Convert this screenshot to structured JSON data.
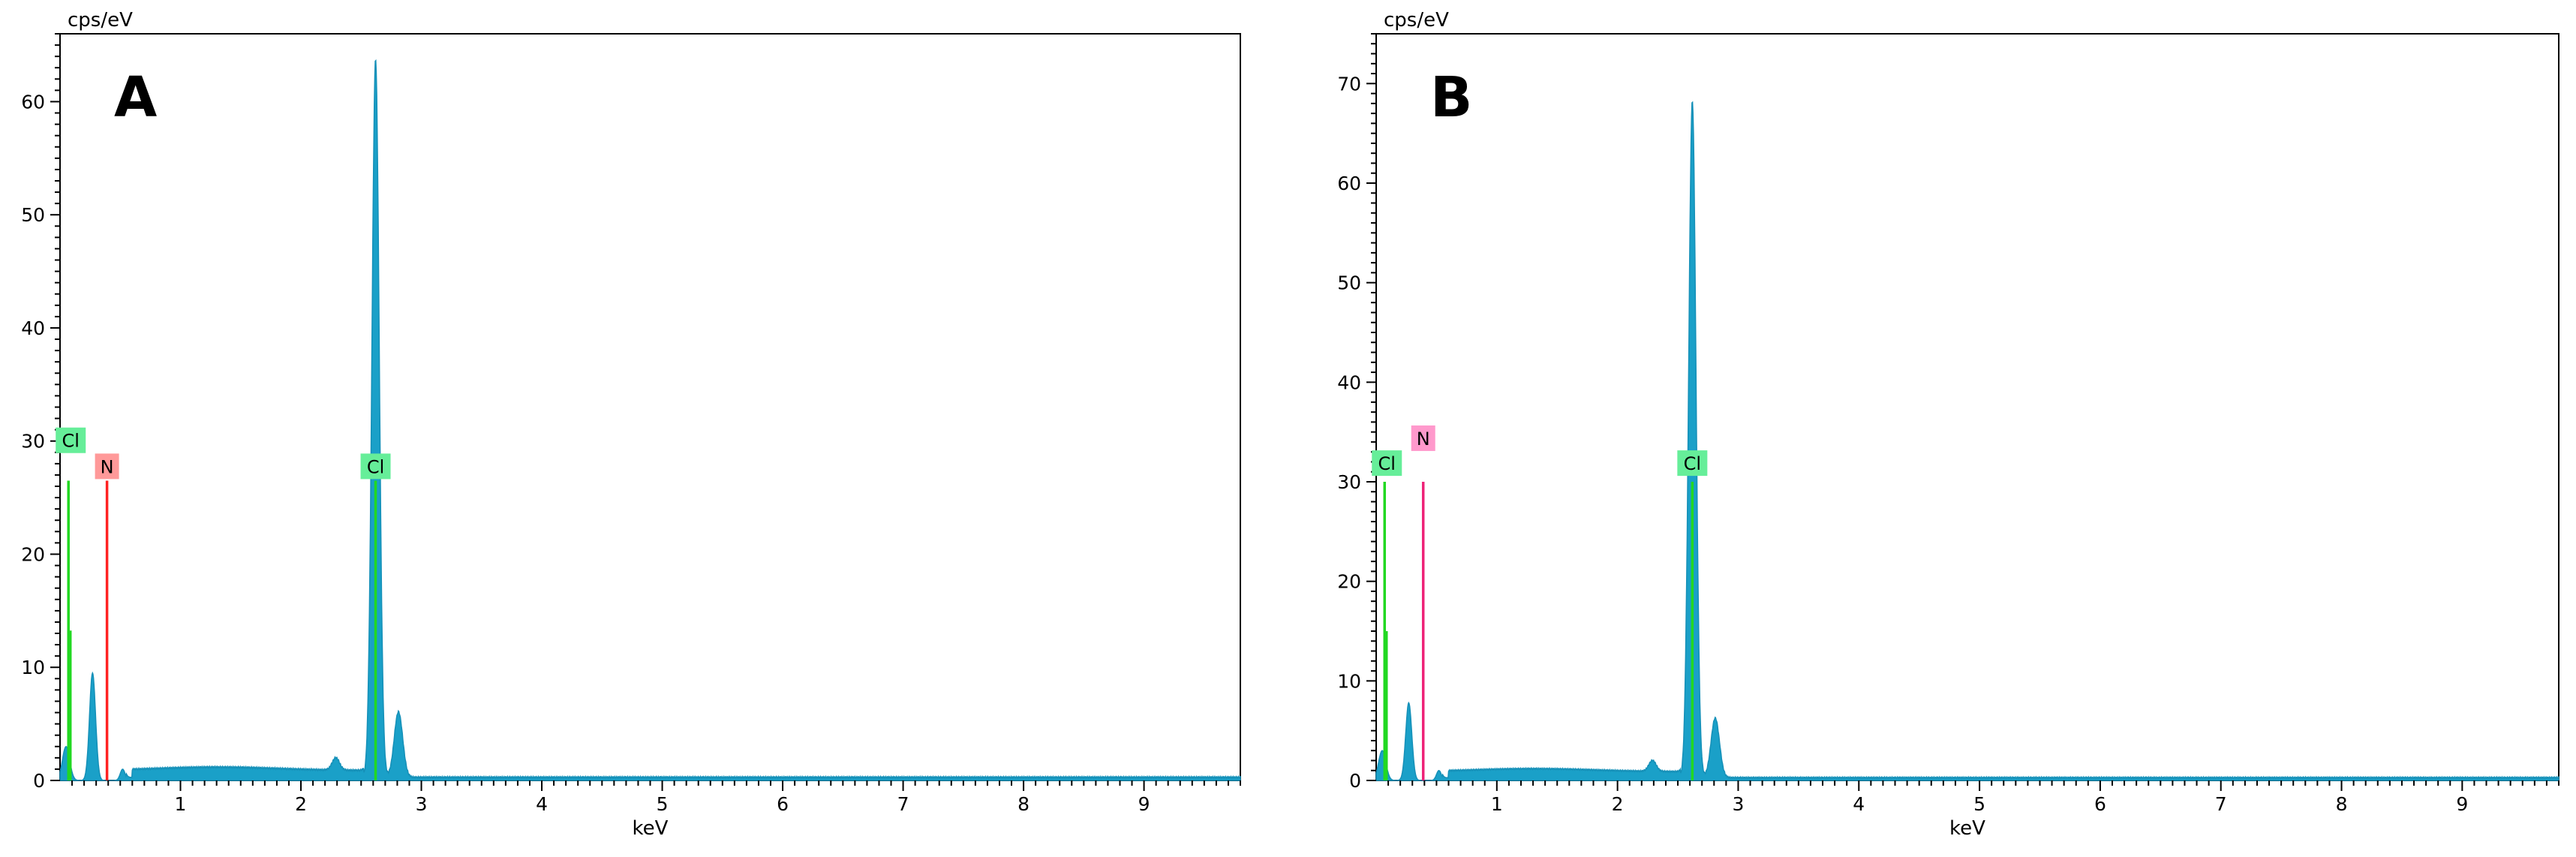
{
  "chart_data": [
    {
      "type": "area",
      "panel_label": "A",
      "ylabel": "cps/eV",
      "xlabel": "keV",
      "xlim": [
        0.0,
        9.8
      ],
      "ylim": [
        0,
        66
      ],
      "xticks": [
        1,
        2,
        3,
        4,
        5,
        6,
        7,
        8,
        9
      ],
      "yticks": [
        0,
        10,
        20,
        30,
        40,
        50,
        60
      ],
      "fill_color": "#1aa0c8",
      "spectrum_peaks": [
        {
          "center": 0.05,
          "height": 3.0,
          "width": 0.03
        },
        {
          "center": 0.27,
          "height": 9.5,
          "width": 0.025
        },
        {
          "center": 0.52,
          "height": 1.0,
          "width": 0.02
        },
        {
          "center": 2.29,
          "height": 1.1,
          "width": 0.03
        },
        {
          "center": 2.62,
          "height": 63.5,
          "width": 0.03
        },
        {
          "center": 2.81,
          "height": 5.8,
          "width": 0.035
        }
      ],
      "markers": [
        {
          "element": "Cl",
          "energy": 0.07,
          "height": 26.5,
          "label_y": 30,
          "color": "#22d822",
          "label_bg": "#66ee99"
        },
        {
          "element": "N",
          "energy": 0.39,
          "height": 26.5,
          "label_y": 27.7,
          "color": "#ff2222",
          "label_bg": "#ff9999"
        },
        {
          "element": "Cl",
          "energy": 2.62,
          "height": 26.5,
          "label_y": 27.7,
          "color": "#22d822",
          "label_bg": "#66ee99"
        }
      ]
    },
    {
      "type": "area",
      "panel_label": "B",
      "ylabel": "cps/eV",
      "xlabel": "keV",
      "xlim": [
        0.0,
        9.8
      ],
      "ylim": [
        0,
        75
      ],
      "xticks": [
        1,
        2,
        3,
        4,
        5,
        6,
        7,
        8,
        9
      ],
      "yticks": [
        0,
        10,
        20,
        30,
        40,
        50,
        60,
        70
      ],
      "fill_color": "#1aa0c8",
      "spectrum_peaks": [
        {
          "center": 0.05,
          "height": 3.0,
          "width": 0.03
        },
        {
          "center": 0.27,
          "height": 7.8,
          "width": 0.025
        },
        {
          "center": 0.52,
          "height": 1.0,
          "width": 0.02
        },
        {
          "center": 2.29,
          "height": 1.1,
          "width": 0.03
        },
        {
          "center": 2.62,
          "height": 68.0,
          "width": 0.03
        },
        {
          "center": 2.81,
          "height": 6.0,
          "width": 0.035
        }
      ],
      "markers": [
        {
          "element": "Cl",
          "energy": 0.07,
          "height": 30.0,
          "label_y": 31.8,
          "color": "#22d822",
          "label_bg": "#66ee99"
        },
        {
          "element": "N",
          "energy": 0.39,
          "height": 30.0,
          "label_y": 34.3,
          "color": "#ee2277",
          "label_bg": "#ff99cc"
        },
        {
          "element": "Cl",
          "energy": 2.62,
          "height": 30.0,
          "label_y": 31.8,
          "color": "#22d822",
          "label_bg": "#66ee99"
        }
      ]
    }
  ]
}
